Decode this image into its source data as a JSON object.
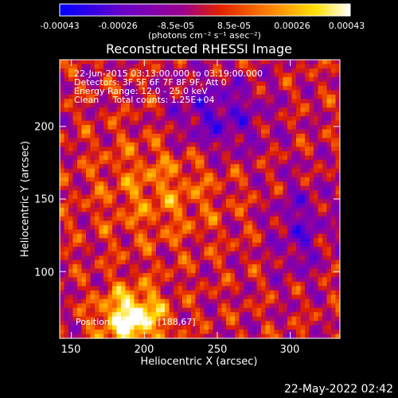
{
  "colorbar": {
    "ticks": [
      "-0.00043",
      "-0.00026",
      "-8.5e-05",
      "8.5e-05",
      "0.00026",
      "0.00043"
    ],
    "units": "(photons cm⁻² s⁻¹ asec⁻²)",
    "range": [
      -0.00043,
      0.00043
    ],
    "colors": [
      "#0000ff",
      "#6a00c8",
      "#9a0090",
      "#e02000",
      "#ff8000",
      "#ffe000",
      "#ffffff"
    ]
  },
  "info": {
    "line1": "22-Jun-2015 03:13:00.000 to 03:19:00.000",
    "line2": "Detectors: 3F 5F 6F 7F 8F 9F, Att 0",
    "line3": "Energy Range: 12.0 - 25.0 keV",
    "line4": "Clean     Total counts: 1.25E+04",
    "peak": "Position of peak = [188,67]"
  },
  "timestamp": "22-May-2022 02:42",
  "chart_data": {
    "type": "heatmap",
    "title": "Reconstructed RHESSI Image",
    "xlabel": "Heliocentric X (arcsec)",
    "ylabel": "Heliocentric Y (arcsec)",
    "xlim": [
      142,
      334
    ],
    "ylim": [
      54,
      246
    ],
    "xticks": [
      150,
      200,
      250,
      300
    ],
    "yticks": [
      100,
      150,
      200
    ],
    "grid": false,
    "peak": [
      188,
      67
    ],
    "zrange": [
      -0.00043,
      0.00043
    ]
  }
}
